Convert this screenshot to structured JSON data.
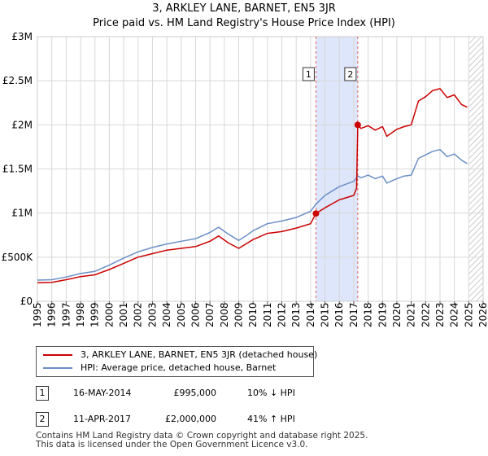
{
  "chart_data": {
    "type": "line",
    "title": "3, ARKLEY LANE, BARNET, EN5 3JR",
    "subtitle": "Price paid vs. HM Land Registry's House Price Index (HPI)",
    "xlim": [
      1995,
      2026
    ],
    "ylim": [
      0,
      3000000
    ],
    "x_ticks": [
      1995,
      1996,
      1997,
      1998,
      1999,
      2000,
      2001,
      2002,
      2003,
      2004,
      2005,
      2006,
      2007,
      2008,
      2009,
      2010,
      2011,
      2012,
      2013,
      2014,
      2015,
      2016,
      2017,
      2018,
      2019,
      2020,
      2021,
      2022,
      2023,
      2024,
      2025,
      2026
    ],
    "y_ticks": [
      {
        "value": 0,
        "label": "£0"
      },
      {
        "value": 500000,
        "label": "£500K"
      },
      {
        "value": 1000000,
        "label": "£1M"
      },
      {
        "value": 1500000,
        "label": "£1.5M"
      },
      {
        "value": 2000000,
        "label": "£2M"
      },
      {
        "value": 2500000,
        "label": "£2.5M"
      },
      {
        "value": 3000000,
        "label": "£3M"
      }
    ],
    "grid": true,
    "shaded_region": {
      "from": 2014.37,
      "to": 2017.28,
      "color": "#dde6fa"
    },
    "hatched_region_from": 2025.0,
    "series": [
      {
        "name": "3, ARKLEY LANE, BARNET, EN5 3JR (detached house)",
        "color": "#cc0000",
        "x": [
          1995.0,
          1996.0,
          1997.0,
          1998.0,
          1999.0,
          2000.0,
          2001.0,
          2002.0,
          2003.0,
          2004.0,
          2005.0,
          2006.0,
          2007.0,
          2007.6,
          2008.3,
          2009.0,
          2009.5,
          2010.0,
          2011.0,
          2012.0,
          2013.0,
          2014.0,
          2014.37,
          2015.0,
          2016.0,
          2017.0,
          2017.2,
          2017.28,
          2017.5,
          2018.0,
          2018.5,
          2019.0,
          2019.3,
          2020.0,
          2020.5,
          2021.0,
          2021.5,
          2022.0,
          2022.5,
          2023.0,
          2023.5,
          2024.0,
          2024.5,
          2024.9
        ],
        "y": [
          210000,
          215000,
          245000,
          280000,
          300000,
          360000,
          430000,
          500000,
          540000,
          580000,
          600000,
          620000,
          680000,
          740000,
          660000,
          600000,
          650000,
          700000,
          770000,
          790000,
          830000,
          880000,
          995000,
          1060000,
          1150000,
          1200000,
          1280000,
          2000000,
          1960000,
          1990000,
          1940000,
          1980000,
          1870000,
          1950000,
          1980000,
          2000000,
          2270000,
          2320000,
          2390000,
          2410000,
          2310000,
          2340000,
          2230000,
          2200000
        ]
      },
      {
        "name": "HPI: Average price, detached house, Barnet",
        "color": "#6b8fc7",
        "x": [
          1995.0,
          1996.0,
          1997.0,
          1998.0,
          1999.0,
          2000.0,
          2001.0,
          2002.0,
          2003.0,
          2004.0,
          2005.0,
          2006.0,
          2007.0,
          2007.6,
          2008.3,
          2009.0,
          2009.5,
          2010.0,
          2011.0,
          2012.0,
          2013.0,
          2014.0,
          2014.37,
          2015.0,
          2016.0,
          2017.0,
          2017.2,
          2017.28,
          2017.5,
          2018.0,
          2018.5,
          2019.0,
          2019.3,
          2020.0,
          2020.5,
          2021.0,
          2021.5,
          2022.0,
          2022.5,
          2023.0,
          2023.5,
          2024.0,
          2024.5,
          2024.9
        ],
        "y": [
          240000,
          245000,
          275000,
          315000,
          340000,
          410000,
          490000,
          560000,
          610000,
          650000,
          680000,
          710000,
          780000,
          840000,
          760000,
          690000,
          740000,
          800000,
          880000,
          910000,
          950000,
          1020000,
          1100000,
          1200000,
          1300000,
          1360000,
          1400000,
          1420000,
          1400000,
          1430000,
          1390000,
          1420000,
          1340000,
          1390000,
          1420000,
          1430000,
          1620000,
          1660000,
          1700000,
          1720000,
          1640000,
          1670000,
          1600000,
          1560000
        ]
      }
    ],
    "markers": [
      {
        "label": "1",
        "x": 2014.37,
        "y": 995000
      },
      {
        "label": "2",
        "x": 2017.28,
        "y": 2000000
      }
    ]
  },
  "legend": {
    "items": [
      {
        "label": "3, ARKLEY LANE, BARNET, EN5 3JR (detached house)",
        "color": "#cc0000"
      },
      {
        "label": "HPI: Average price, detached house, Barnet",
        "color": "#6b8fc7"
      }
    ]
  },
  "transactions": [
    {
      "num": "1",
      "date": "16-MAY-2014",
      "price": "£995,000",
      "hpi": "10% ↓ HPI"
    },
    {
      "num": "2",
      "date": "11-APR-2017",
      "price": "£2,000,000",
      "hpi": "41% ↑ HPI"
    }
  ],
  "footer": {
    "line1": "Contains HM Land Registry data © Crown copyright and database right 2025.",
    "line2": "This data is licensed under the Open Government Licence v3.0."
  }
}
